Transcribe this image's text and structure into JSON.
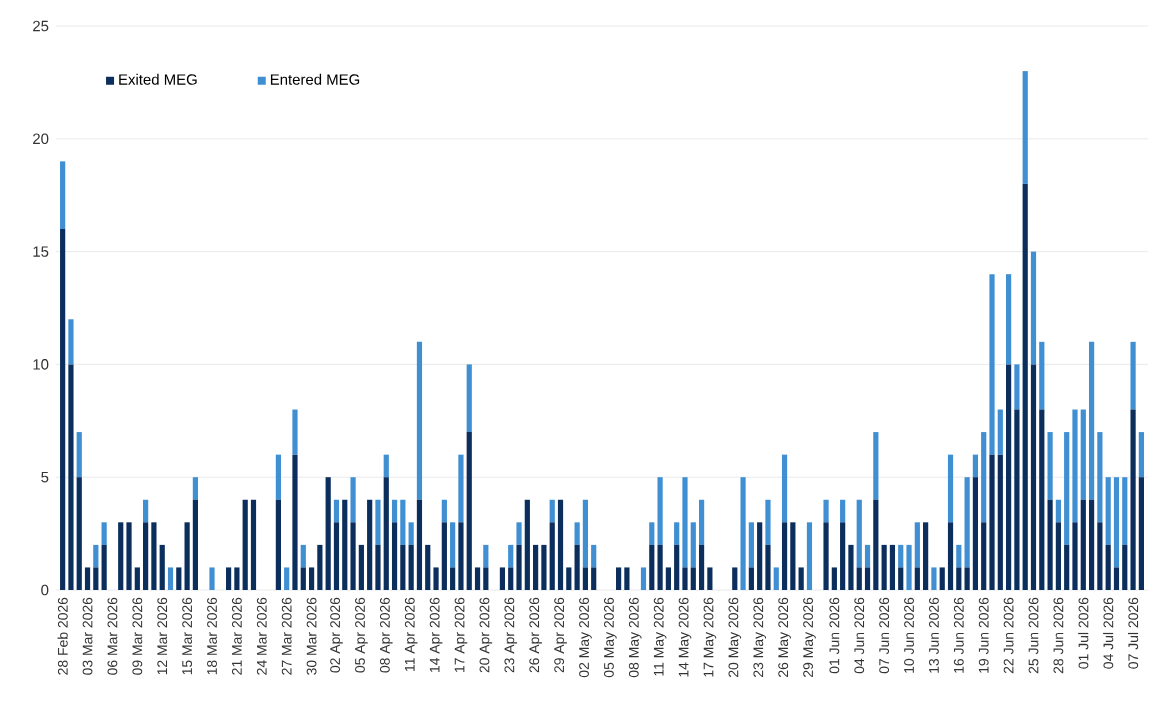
{
  "chart_data": {
    "type": "bar",
    "stacked": true,
    "grid": "y",
    "legend": "top left",
    "categories": [
      "28 Feb 2026",
      null,
      null,
      "03 Mar 2026",
      null,
      null,
      "06 Mar 2026",
      null,
      null,
      "09 Mar 2026",
      null,
      null,
      "12 Mar 2026",
      null,
      null,
      "15 Mar 2026",
      null,
      null,
      "18 Mar 2026",
      null,
      null,
      "21 Mar 2026",
      null,
      null,
      "24 Mar 2026",
      null,
      null,
      "27 Mar 2026",
      null,
      null,
      "30 Mar 2026",
      null,
      null,
      "02 Apr 2026",
      null,
      null,
      "05 Apr 2026",
      null,
      null,
      "08 Apr 2026",
      null,
      null,
      "11 Apr 2026",
      null,
      null,
      "14 Apr 2026",
      null,
      null,
      "17 Apr 2026",
      null,
      null,
      "20 Apr 2026",
      null,
      null,
      "23 Apr 2026",
      null,
      null,
      "26 Apr 2026",
      null,
      null,
      "29 Apr 2026",
      null,
      null,
      "02 May 2026",
      null,
      null,
      "05 May 2026",
      null,
      null,
      "08 May 2026",
      null,
      null,
      "11 May 2026",
      null,
      null,
      "14 May 2026",
      null,
      null,
      "17 May 2026",
      null,
      null,
      "20 May 2026",
      null,
      null,
      "23 May 2026",
      null,
      null,
      "26 May 2026",
      null,
      null,
      "29 May 2026",
      null,
      null,
      "01 Jun 2026",
      null,
      null,
      "04 Jun 2026",
      null,
      null,
      "07 Jun 2026",
      null,
      null,
      "10 Jun 2026",
      null,
      null,
      "13 Jun 2026",
      null,
      null,
      "16 Jun 2026",
      null,
      null,
      "19 Jun 2026",
      null,
      null,
      "22 Jun 2026",
      null,
      null,
      "25 Jun 2026",
      null,
      null,
      "28 Jun 2026",
      null,
      null,
      "01 Jul 2026",
      null,
      null,
      "04 Jul 2026",
      null,
      null,
      "07 Jul 2026",
      null
    ],
    "ylim": [
      0,
      25
    ],
    "yticks": [
      0,
      5,
      10,
      15,
      20,
      25
    ],
    "series": [
      {
        "name": "Exited MEG",
        "color": "#0b2e5c",
        "values": [
          16,
          10,
          5,
          1,
          1,
          2,
          0,
          3,
          3,
          1,
          3,
          3,
          2,
          0,
          1,
          3,
          4,
          0,
          0,
          0,
          1,
          1,
          4,
          4,
          0,
          0,
          4,
          0,
          6,
          1,
          1,
          2,
          5,
          3,
          4,
          3,
          2,
          4,
          2,
          5,
          3,
          2,
          2,
          4,
          2,
          1,
          3,
          1,
          3,
          7,
          1,
          1,
          0,
          1,
          1,
          2,
          4,
          2,
          2,
          3,
          4,
          1,
          2,
          1,
          1,
          0,
          0,
          1,
          1,
          0,
          0,
          2,
          2,
          1,
          2,
          1,
          1,
          2,
          1,
          0,
          0,
          1,
          0,
          1,
          3,
          2,
          0,
          3,
          3,
          1,
          0,
          0,
          3,
          1,
          3,
          2,
          1,
          1,
          4,
          2,
          2,
          1,
          0,
          1,
          3,
          0,
          1,
          3,
          1,
          1,
          5,
          3,
          6,
          6,
          10,
          8,
          18,
          10,
          8,
          4,
          3,
          2,
          3,
          4,
          4,
          3,
          2,
          1,
          2,
          8,
          5
        ]
      },
      {
        "name": "Entered MEG",
        "color": "#3f8fd2",
        "values": [
          3,
          2,
          2,
          0,
          1,
          1,
          0,
          0,
          0,
          0,
          1,
          0,
          0,
          1,
          0,
          0,
          1,
          0,
          1,
          0,
          0,
          0,
          0,
          0,
          0,
          0,
          2,
          1,
          2,
          1,
          0,
          0,
          0,
          1,
          0,
          2,
          0,
          0,
          2,
          1,
          1,
          2,
          1,
          7,
          0,
          0,
          1,
          2,
          3,
          3,
          0,
          1,
          0,
          0,
          1,
          1,
          0,
          0,
          0,
          1,
          0,
          0,
          1,
          3,
          1,
          0,
          0,
          0,
          0,
          0,
          1,
          1,
          3,
          0,
          1,
          4,
          2,
          2,
          0,
          0,
          0,
          0,
          5,
          2,
          0,
          2,
          1,
          3,
          0,
          0,
          3,
          0,
          1,
          0,
          1,
          0,
          3,
          1,
          3,
          0,
          0,
          1,
          2,
          2,
          0,
          1,
          0,
          3,
          1,
          4,
          1,
          4,
          8,
          2,
          4,
          2,
          5,
          5,
          3,
          3,
          1,
          5,
          5,
          4,
          7,
          4,
          3,
          4,
          3,
          3,
          2
        ]
      }
    ]
  }
}
